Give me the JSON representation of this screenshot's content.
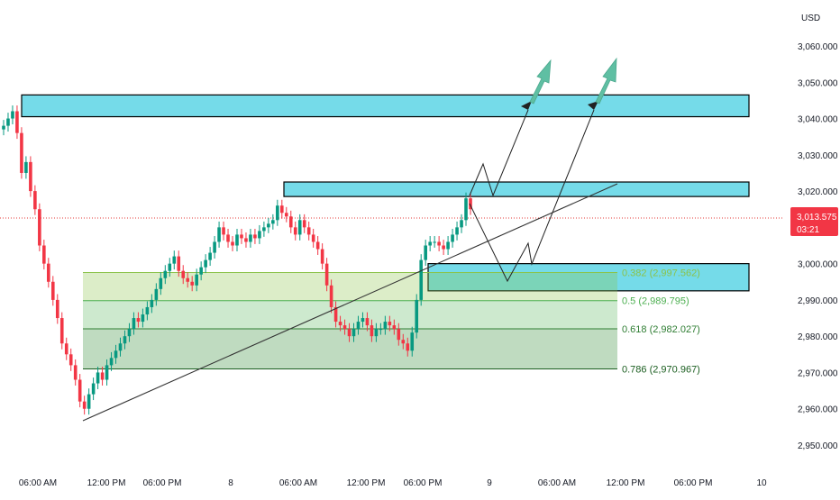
{
  "chart_data": {
    "type": "candlestick",
    "currency_label": "USD",
    "y_ticks": [
      "3,060.000",
      "3,050.000",
      "3,040.000",
      "3,030.000",
      "3,020.000",
      "3,010.000",
      "3,000.000",
      "2,990.000",
      "2,980.000",
      "2,970.000",
      "2,960.000",
      "2,950.000"
    ],
    "y_tick_values": [
      3060,
      3050,
      3040,
      3030,
      3020,
      3010,
      3000,
      2990,
      2980,
      2970,
      2960,
      2950
    ],
    "ylim": [
      2946,
      3069
    ],
    "x_ticks": [
      "06:00 AM",
      "12:00 PM",
      "06:00 PM",
      "8",
      "06:00 AM",
      "12:00 PM",
      "06:00 PM",
      "9",
      "06:00 AM",
      "12:00 PM",
      "06:00 PM",
      "10"
    ],
    "current_price": {
      "label": "3,013.575",
      "countdown": "03:21",
      "value": 3013.575
    },
    "fibonacci": [
      {
        "label": "0.382 (2,997.562)",
        "value": 2997.562,
        "color": "#8bc34a"
      },
      {
        "label": "0.5 (2,989.795)",
        "value": 2989.795,
        "color": "#4caf50"
      },
      {
        "label": "0.618 (2,982.027)",
        "value": 2982.027,
        "color": "#2e7d32"
      },
      {
        "label": "0.786 (2,970.967)",
        "value": 2970.967,
        "color": "#1b5e20"
      }
    ],
    "zones": [
      {
        "name": "upper-resistance",
        "from": 3040.5,
        "to": 3046.5
      },
      {
        "name": "mid-resistance",
        "from": 3018.5,
        "to": 3022.5
      },
      {
        "name": "support",
        "from": 2992.5,
        "to": 3000.0
      }
    ],
    "close_path": [
      3038,
      3040,
      3042,
      3036,
      3025,
      3028,
      3020,
      3015,
      3005,
      3000,
      2995,
      2990,
      2985,
      2978,
      2975,
      2972,
      2968,
      2962,
      2960,
      2964,
      2967,
      2970,
      2968,
      2972,
      2974,
      2976,
      2978,
      2980,
      2982,
      2985,
      2984,
      2986,
      2988,
      2990,
      2993,
      2996,
      2998,
      3000,
      3002,
      2998,
      2996,
      2995,
      2994,
      2997,
      2999,
      3001,
      3003,
      3006,
      3010,
      3008,
      3006,
      3005,
      3008,
      3007,
      3006,
      3008,
      3007,
      3009,
      3010,
      3011,
      3012,
      3016,
      3014,
      3013,
      3010,
      3008,
      3012,
      3010,
      3008,
      3006,
      3004,
      3000,
      2994,
      2988,
      2984,
      2983,
      2982,
      2980,
      2982,
      2984,
      2985,
      2983,
      2980,
      2982,
      2982,
      2984,
      2983,
      2982,
      2979,
      2978,
      2976,
      2981,
      2990,
      3001,
      3005,
      3006,
      3006,
      3005,
      3004,
      3006,
      3008,
      3010,
      3012,
      3018,
      3015
    ]
  }
}
